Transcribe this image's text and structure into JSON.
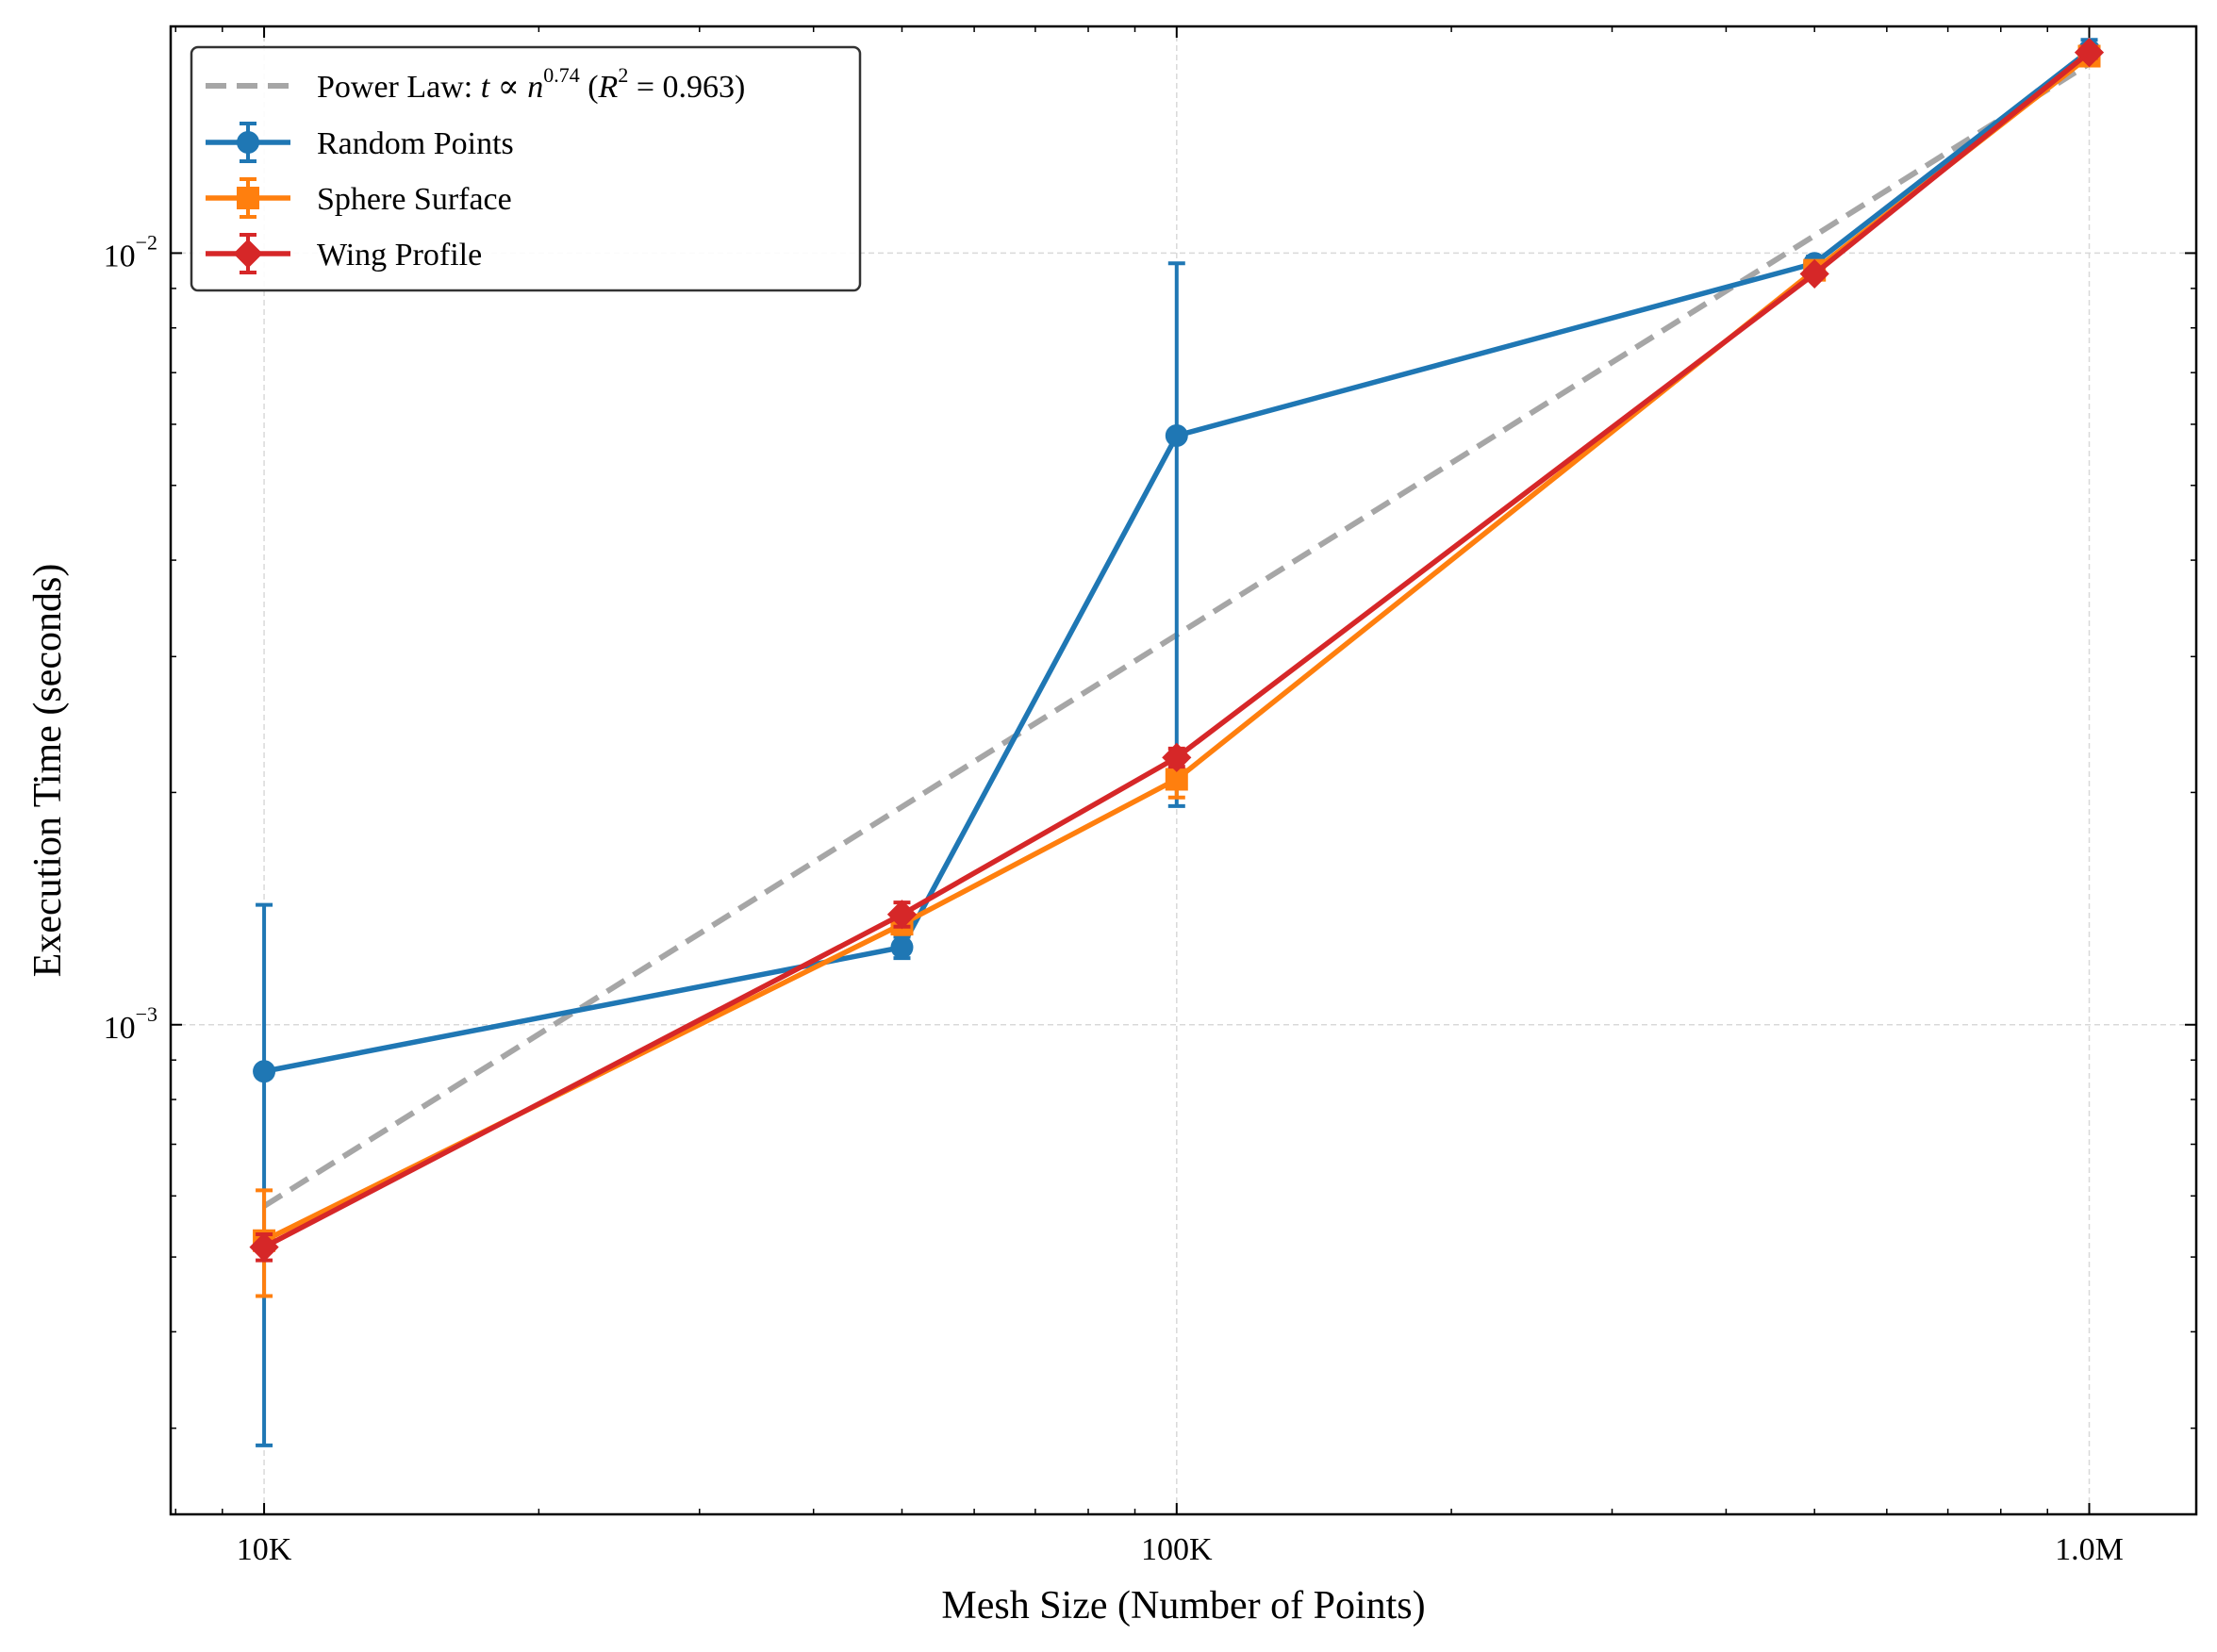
{
  "chart_data": {
    "type": "line",
    "xlabel": "Mesh Size (Number of Points)",
    "ylabel": "Execution Time (seconds)",
    "xscale": "log",
    "yscale": "log",
    "xlim": [
      7900,
      1310000
    ],
    "ylim": [
      0.000232,
      0.01967
    ],
    "x_ticks": [
      {
        "value": 10000,
        "label": "10K"
      },
      {
        "value": 100000,
        "label": "100K"
      },
      {
        "value": 1000000,
        "label": "1.0M"
      }
    ],
    "y_ticks": [
      {
        "value": 0.001,
        "base": "10",
        "exp": "−3"
      },
      {
        "value": 0.01,
        "base": "10",
        "exp": "−2"
      }
    ],
    "grid": true,
    "legend_position": "top-left",
    "fit": {
      "label_prefix": "Power Law: ",
      "var_t": "t",
      "propto": "∝",
      "var_n": "n",
      "exponent": "0.74",
      "r2_open": "(",
      "r2_var": "R",
      "r2_sup": "2",
      "r2_eq": " = 0.963)",
      "color": "#a6a6a6",
      "x": [
        10000,
        1000000
      ],
      "y": [
        0.000582,
        0.0176
      ]
    },
    "series": [
      {
        "name": "Random Points",
        "color": "#1f77b4",
        "marker": "circle",
        "x": [
          10000,
          50000,
          100000,
          500000,
          1000000
        ],
        "y": [
          0.00087,
          0.00126,
          0.0058,
          0.0097,
          0.0183
        ],
        "err_low": [
          0.000285,
          0.00122,
          0.00192,
          0.0095,
          0.0177
        ],
        "err_high": [
          0.00143,
          0.0013,
          0.0097,
          0.0099,
          0.0189
        ]
      },
      {
        "name": "Sphere Surface",
        "color": "#ff7f0e",
        "marker": "square",
        "x": [
          10000,
          50000,
          100000,
          500000,
          1000000
        ],
        "y": [
          0.000525,
          0.00135,
          0.00208,
          0.0095,
          0.018
        ],
        "err_low": [
          0.000445,
          0.00131,
          0.00197,
          0.0093,
          0.0177
        ],
        "err_high": [
          0.00061,
          0.00139,
          0.0022,
          0.0097,
          0.0183
        ]
      },
      {
        "name": "Wing Profile",
        "color": "#d62728",
        "marker": "diamond",
        "x": [
          10000,
          50000,
          100000,
          500000,
          1000000
        ],
        "y": [
          0.000515,
          0.00139,
          0.00222,
          0.0094,
          0.0182
        ],
        "err_low": [
          0.000495,
          0.00134,
          0.00216,
          0.0093,
          0.0179
        ],
        "err_high": [
          0.000535,
          0.00144,
          0.00228,
          0.0095,
          0.0185
        ]
      }
    ]
  }
}
